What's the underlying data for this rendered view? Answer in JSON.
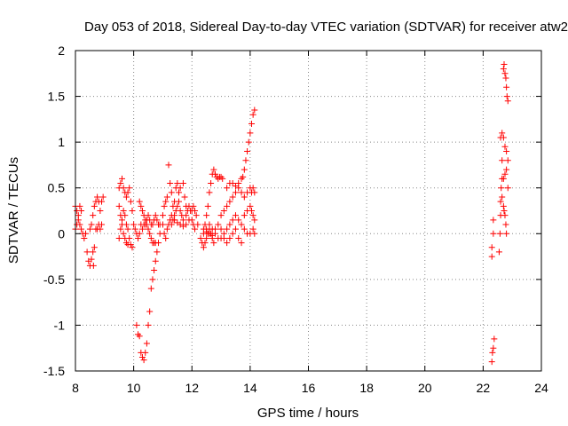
{
  "chart_data": {
    "type": "scatter",
    "title": "Day 053 of 2018, Sidereal Day-to-day VTEC variation (SDTVAR) for receiver atw2",
    "xlabel": "GPS time / hours",
    "ylabel": "SDTVAR / TECUs",
    "xlim": [
      8,
      24
    ],
    "ylim": [
      -1.5,
      2
    ],
    "xticks": [
      "8",
      "10",
      "12",
      "14",
      "16",
      "18",
      "20",
      "22",
      "24"
    ],
    "yticks": [
      "-1.5",
      "-1",
      "-0.5",
      "0",
      "0.5",
      "1",
      "1.5",
      "2"
    ],
    "grid": true,
    "marker": "+",
    "marker_color": "#ff0000",
    "series": [
      {
        "name": "SDTVAR",
        "points": [
          [
            8.0,
            0.3
          ],
          [
            8.05,
            0.25
          ],
          [
            8.1,
            0.2
          ],
          [
            8.15,
            0.1
          ],
          [
            8.2,
            0.05
          ],
          [
            8.25,
            0.0
          ],
          [
            8.3,
            -0.05
          ],
          [
            8.0,
            0.05
          ],
          [
            8.05,
            0.1
          ],
          [
            8.1,
            0.15
          ],
          [
            8.15,
            0.3
          ],
          [
            8.2,
            0.25
          ],
          [
            8.35,
            0.0
          ],
          [
            8.4,
            -0.2
          ],
          [
            8.45,
            -0.3
          ],
          [
            8.5,
            -0.35
          ],
          [
            8.55,
            -0.28
          ],
          [
            8.6,
            -0.2
          ],
          [
            8.62,
            -0.35
          ],
          [
            8.65,
            -0.15
          ],
          [
            8.5,
            0.05
          ],
          [
            8.55,
            0.1
          ],
          [
            8.6,
            0.2
          ],
          [
            8.65,
            0.3
          ],
          [
            8.7,
            0.35
          ],
          [
            8.75,
            0.4
          ],
          [
            8.8,
            0.35
          ],
          [
            8.85,
            0.25
          ],
          [
            8.9,
            0.35
          ],
          [
            8.95,
            0.4
          ],
          [
            8.7,
            0.05
          ],
          [
            8.75,
            0.05
          ],
          [
            8.8,
            0.1
          ],
          [
            8.85,
            0.05
          ],
          [
            8.9,
            0.1
          ],
          [
            9.5,
            -0.05
          ],
          [
            9.55,
            0.05
          ],
          [
            9.6,
            0.15
          ],
          [
            9.65,
            0.25
          ],
          [
            9.7,
            0.2
          ],
          [
            9.75,
            0.1
          ],
          [
            9.8,
            0.05
          ],
          [
            9.85,
            -0.05
          ],
          [
            9.9,
            -0.12
          ],
          [
            9.95,
            -0.15
          ],
          [
            9.5,
            0.5
          ],
          [
            9.55,
            0.55
          ],
          [
            9.6,
            0.6
          ],
          [
            9.65,
            0.5
          ],
          [
            9.7,
            0.45
          ],
          [
            9.75,
            0.4
          ],
          [
            9.8,
            0.45
          ],
          [
            9.85,
            0.5
          ],
          [
            9.9,
            0.35
          ],
          [
            9.95,
            0.25
          ],
          [
            9.5,
            0.3
          ],
          [
            9.55,
            0.2
          ],
          [
            9.6,
            0.1
          ],
          [
            9.65,
            0.0
          ],
          [
            9.7,
            -0.05
          ],
          [
            9.75,
            -0.1
          ],
          [
            9.8,
            -0.12
          ],
          [
            10.0,
            0.1
          ],
          [
            10.05,
            0.05
          ],
          [
            10.1,
            0.0
          ],
          [
            10.15,
            -0.05
          ],
          [
            10.2,
            0.0
          ],
          [
            10.25,
            0.1
          ],
          [
            10.1,
            -1.0
          ],
          [
            10.15,
            -1.1
          ],
          [
            10.2,
            -1.12
          ],
          [
            10.25,
            -1.3
          ],
          [
            10.3,
            -1.35
          ],
          [
            10.35,
            -1.38
          ],
          [
            10.4,
            -1.3
          ],
          [
            10.45,
            -1.2
          ],
          [
            10.5,
            -1.0
          ],
          [
            10.55,
            -0.85
          ],
          [
            10.6,
            -0.6
          ],
          [
            10.65,
            -0.5
          ],
          [
            10.7,
            -0.4
          ],
          [
            10.75,
            -0.3
          ],
          [
            10.8,
            -0.2
          ],
          [
            10.85,
            -0.1
          ],
          [
            10.9,
            0.0
          ],
          [
            10.2,
            0.35
          ],
          [
            10.25,
            0.3
          ],
          [
            10.3,
            0.25
          ],
          [
            10.35,
            0.2
          ],
          [
            10.4,
            0.15
          ],
          [
            10.45,
            0.1
          ],
          [
            10.5,
            0.05
          ],
          [
            10.55,
            0.0
          ],
          [
            10.6,
            -0.05
          ],
          [
            10.65,
            -0.1
          ],
          [
            10.7,
            -0.1
          ],
          [
            10.75,
            -0.1
          ],
          [
            10.3,
            0.05
          ],
          [
            10.35,
            0.1
          ],
          [
            10.4,
            0.1
          ],
          [
            10.45,
            0.15
          ],
          [
            10.5,
            0.2
          ],
          [
            10.55,
            0.15
          ],
          [
            10.6,
            0.1
          ],
          [
            10.65,
            0.1
          ],
          [
            10.7,
            0.15
          ],
          [
            10.75,
            0.2
          ],
          [
            10.8,
            0.15
          ],
          [
            10.85,
            0.1
          ],
          [
            10.9,
            0.1
          ],
          [
            11.0,
            0.2
          ],
          [
            11.05,
            0.3
          ],
          [
            11.1,
            0.35
          ],
          [
            11.15,
            0.4
          ],
          [
            11.2,
            0.75
          ],
          [
            11.25,
            0.55
          ],
          [
            11.3,
            0.45
          ],
          [
            11.35,
            0.3
          ],
          [
            11.4,
            0.35
          ],
          [
            11.45,
            0.5
          ],
          [
            11.5,
            0.55
          ],
          [
            11.55,
            0.45
          ],
          [
            11.6,
            0.5
          ],
          [
            11.7,
            0.55
          ],
          [
            11.75,
            0.4
          ],
          [
            11.8,
            0.3
          ],
          [
            11.0,
            0.1
          ],
          [
            11.05,
            0.0
          ],
          [
            11.1,
            -0.05
          ],
          [
            11.15,
            0.05
          ],
          [
            11.2,
            0.1
          ],
          [
            11.25,
            0.15
          ],
          [
            11.3,
            0.2
          ],
          [
            11.35,
            0.15
          ],
          [
            11.4,
            0.2
          ],
          [
            11.45,
            0.25
          ],
          [
            11.5,
            0.3
          ],
          [
            11.55,
            0.35
          ],
          [
            11.6,
            0.25
          ],
          [
            11.65,
            0.2
          ],
          [
            11.7,
            0.15
          ],
          [
            11.3,
            0.1
          ],
          [
            11.4,
            0.15
          ],
          [
            11.5,
            0.12
          ],
          [
            11.6,
            0.1
          ],
          [
            11.7,
            0.08
          ],
          [
            11.8,
            0.1
          ],
          [
            11.9,
            0.15
          ],
          [
            12.0,
            0.25
          ],
          [
            12.05,
            0.3
          ],
          [
            12.1,
            0.25
          ],
          [
            12.15,
            0.2
          ],
          [
            12.2,
            0.1
          ],
          [
            11.8,
            0.2
          ],
          [
            11.85,
            0.25
          ],
          [
            11.9,
            0.3
          ],
          [
            11.95,
            0.25
          ],
          [
            12.0,
            0.15
          ],
          [
            12.05,
            0.1
          ],
          [
            12.1,
            0.05
          ],
          [
            12.3,
            -0.05
          ],
          [
            12.35,
            -0.1
          ],
          [
            12.4,
            -0.15
          ],
          [
            12.45,
            -0.1
          ],
          [
            12.5,
            -0.05
          ],
          [
            12.55,
            0.0
          ],
          [
            12.6,
            0.05
          ],
          [
            12.65,
            0.0
          ],
          [
            12.7,
            -0.05
          ],
          [
            12.75,
            -0.1
          ],
          [
            12.4,
            0.05
          ],
          [
            12.45,
            0.1
          ],
          [
            12.5,
            0.2
          ],
          [
            12.55,
            0.3
          ],
          [
            12.6,
            0.45
          ],
          [
            12.65,
            0.55
          ],
          [
            12.7,
            0.65
          ],
          [
            12.75,
            0.7
          ],
          [
            12.8,
            0.65
          ],
          [
            12.85,
            0.62
          ],
          [
            12.9,
            0.6
          ],
          [
            12.95,
            0.62
          ],
          [
            13.0,
            0.62
          ],
          [
            13.05,
            0.6
          ],
          [
            12.4,
            0.0
          ],
          [
            12.5,
            0.05
          ],
          [
            12.6,
            0.1
          ],
          [
            12.7,
            0.05
          ],
          [
            12.8,
            0.0
          ],
          [
            12.9,
            -0.05
          ],
          [
            13.0,
            -0.05
          ],
          [
            13.1,
            0.0
          ],
          [
            13.2,
            0.05
          ],
          [
            13.3,
            0.1
          ],
          [
            13.4,
            0.15
          ],
          [
            13.5,
            0.2
          ],
          [
            13.6,
            0.15
          ],
          [
            13.7,
            0.1
          ],
          [
            13.8,
            0.05
          ],
          [
            13.9,
            0.0
          ],
          [
            14.0,
            0.0
          ],
          [
            14.1,
            0.05
          ],
          [
            14.15,
            0.0
          ],
          [
            12.5,
            0.02
          ],
          [
            12.6,
            0.0
          ],
          [
            12.7,
            -0.02
          ],
          [
            12.8,
            0.05
          ],
          [
            12.9,
            0.1
          ],
          [
            13.0,
            0.05
          ],
          [
            13.1,
            -0.05
          ],
          [
            13.2,
            -0.1
          ],
          [
            13.3,
            -0.05
          ],
          [
            13.4,
            0.0
          ],
          [
            13.5,
            0.05
          ],
          [
            13.6,
            -0.05
          ],
          [
            13.7,
            -0.1
          ],
          [
            13.0,
            0.2
          ],
          [
            13.1,
            0.25
          ],
          [
            13.2,
            0.3
          ],
          [
            13.3,
            0.35
          ],
          [
            13.4,
            0.4
          ],
          [
            13.5,
            0.45
          ],
          [
            13.6,
            0.5
          ],
          [
            13.7,
            0.45
          ],
          [
            13.8,
            0.4
          ],
          [
            13.9,
            0.45
          ],
          [
            14.0,
            0.5
          ],
          [
            14.05,
            0.45
          ],
          [
            14.1,
            0.5
          ],
          [
            14.15,
            0.45
          ],
          [
            13.2,
            0.5
          ],
          [
            13.3,
            0.55
          ],
          [
            13.4,
            0.55
          ],
          [
            13.5,
            0.52
          ],
          [
            13.6,
            0.55
          ],
          [
            13.7,
            0.6
          ],
          [
            13.75,
            0.62
          ],
          [
            13.8,
            0.7
          ],
          [
            13.85,
            0.8
          ],
          [
            13.9,
            0.9
          ],
          [
            13.95,
            1.0
          ],
          [
            14.0,
            1.1
          ],
          [
            14.05,
            1.2
          ],
          [
            14.1,
            1.3
          ],
          [
            14.15,
            1.35
          ],
          [
            13.8,
            0.2
          ],
          [
            13.9,
            0.25
          ],
          [
            14.0,
            0.3
          ],
          [
            14.05,
            0.25
          ],
          [
            14.1,
            0.2
          ],
          [
            14.15,
            0.15
          ],
          [
            22.3,
            -0.25
          ],
          [
            22.3,
            -0.15
          ],
          [
            22.35,
            0.0
          ],
          [
            22.35,
            0.15
          ],
          [
            22.3,
            -1.4
          ],
          [
            22.32,
            -1.3
          ],
          [
            22.35,
            -1.25
          ],
          [
            22.38,
            -1.15
          ],
          [
            22.55,
            -0.2
          ],
          [
            22.58,
            0.0
          ],
          [
            22.6,
            0.2
          ],
          [
            22.6,
            0.35
          ],
          [
            22.62,
            0.5
          ],
          [
            22.65,
            0.6
          ],
          [
            22.65,
            0.8
          ],
          [
            22.6,
            1.05
          ],
          [
            22.65,
            1.1
          ],
          [
            22.7,
            1.05
          ],
          [
            22.75,
            0.95
          ],
          [
            22.8,
            0.9
          ],
          [
            22.85,
            0.8
          ],
          [
            22.65,
            0.4
          ],
          [
            22.7,
            0.3
          ],
          [
            22.72,
            0.25
          ],
          [
            22.75,
            0.2
          ],
          [
            22.78,
            0.1
          ],
          [
            22.8,
            0.0
          ],
          [
            22.7,
            0.6
          ],
          [
            22.75,
            0.65
          ],
          [
            22.8,
            0.7
          ],
          [
            22.85,
            0.5
          ],
          [
            22.7,
            1.8
          ],
          [
            22.72,
            1.85
          ],
          [
            22.75,
            1.75
          ],
          [
            22.78,
            1.7
          ],
          [
            22.8,
            1.6
          ],
          [
            22.82,
            1.5
          ],
          [
            22.85,
            1.45
          ]
        ]
      }
    ]
  }
}
